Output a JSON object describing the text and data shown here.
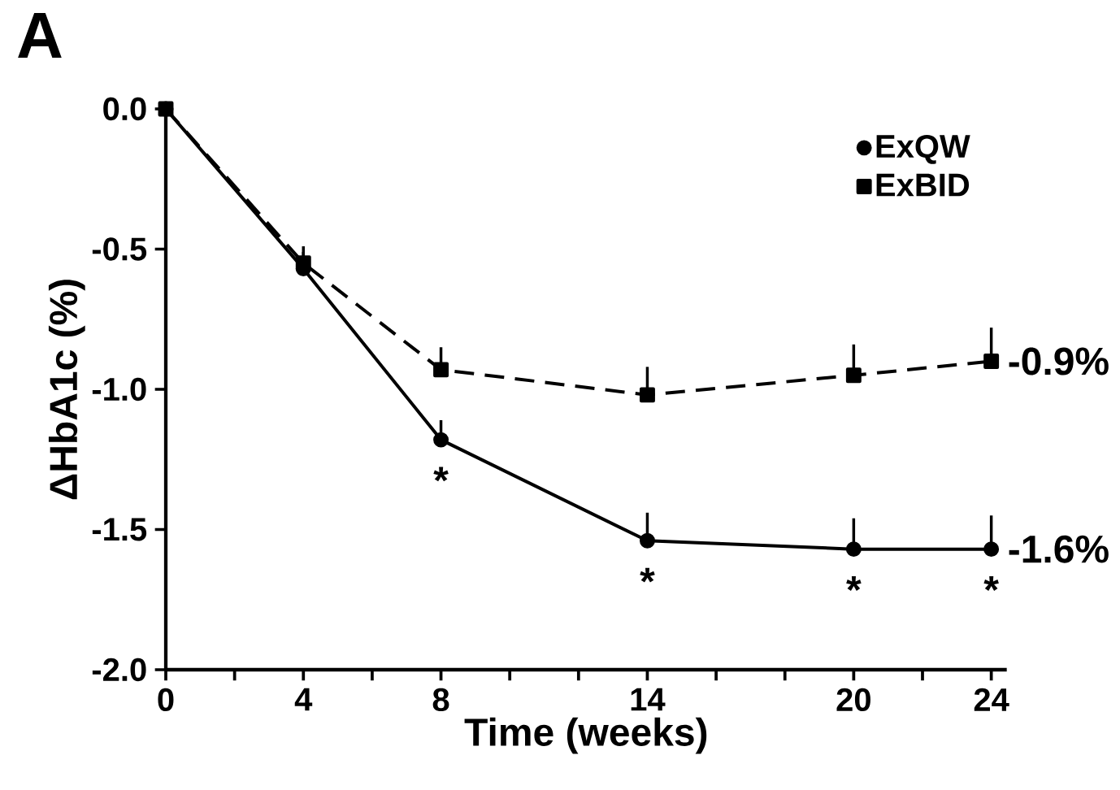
{
  "chart_data": {
    "type": "line",
    "title": "A",
    "xlabel": "Time (weeks)",
    "ylabel": "ΔHbA1c (%)",
    "x": [
      0,
      4,
      8,
      14,
      20,
      24
    ],
    "series": [
      {
        "name": "ExQW",
        "color": "#000000",
        "marker": "circle",
        "line_style": "solid",
        "values": [
          0,
          -0.57,
          -1.18,
          -1.54,
          -1.57,
          -1.57
        ],
        "errors": [
          null,
          [
            -0.57,
            -0.51
          ],
          [
            -1.18,
            -1.11
          ],
          [
            -1.54,
            -1.44
          ],
          [
            -1.57,
            -1.46
          ],
          [
            -1.57,
            -1.45
          ]
        ],
        "value_labels": [
          null,
          null,
          null,
          null,
          null,
          "-1.6%"
        ]
      },
      {
        "name": "ExBID",
        "color": "#000000",
        "marker": "square",
        "line_style": "dashed",
        "values": [
          0,
          -0.55,
          -0.93,
          -1.02,
          -0.95,
          -0.9
        ],
        "errors": [
          null,
          [
            -0.55,
            -0.49
          ],
          [
            -0.93,
            -0.85
          ],
          [
            -1.02,
            -0.92
          ],
          [
            -0.95,
            -0.84
          ],
          [
            -0.9,
            -0.78
          ]
        ],
        "value_labels": [
          null,
          null,
          null,
          null,
          null,
          "-0.9%"
        ]
      }
    ],
    "xlim": [
      0,
      24.45
    ],
    "ylim": [
      -2.0,
      0.0
    ],
    "xticks": [
      0,
      {
        "value": 2,
        "label": null
      },
      4,
      {
        "value": 6,
        "label": null
      },
      8,
      {
        "value": 10,
        "label": null
      },
      {
        "value": 12,
        "label": null
      },
      14,
      {
        "value": 16,
        "label": null
      },
      {
        "value": 18,
        "label": null
      },
      20,
      {
        "value": 22,
        "label": null
      },
      24
    ],
    "yticks": [
      {
        "value": -2.0,
        "label": "-2.0"
      },
      {
        "value": -1.5,
        "label": "-1.5"
      },
      {
        "value": -1.0,
        "label": "-1.0"
      },
      {
        "value": -0.5,
        "label": "-0.5"
      },
      {
        "value": 0.0,
        "label": "0.0"
      }
    ],
    "legend": "top right",
    "grid": false,
    "annotations": [
      {
        "text": "*",
        "x": 8,
        "y": -1.18
      },
      {
        "text": "*",
        "x": 14,
        "y": -1.54
      },
      {
        "text": "*",
        "x": 20,
        "y": -1.57
      },
      {
        "text": "*",
        "x": 24,
        "y": -1.57
      }
    ]
  }
}
